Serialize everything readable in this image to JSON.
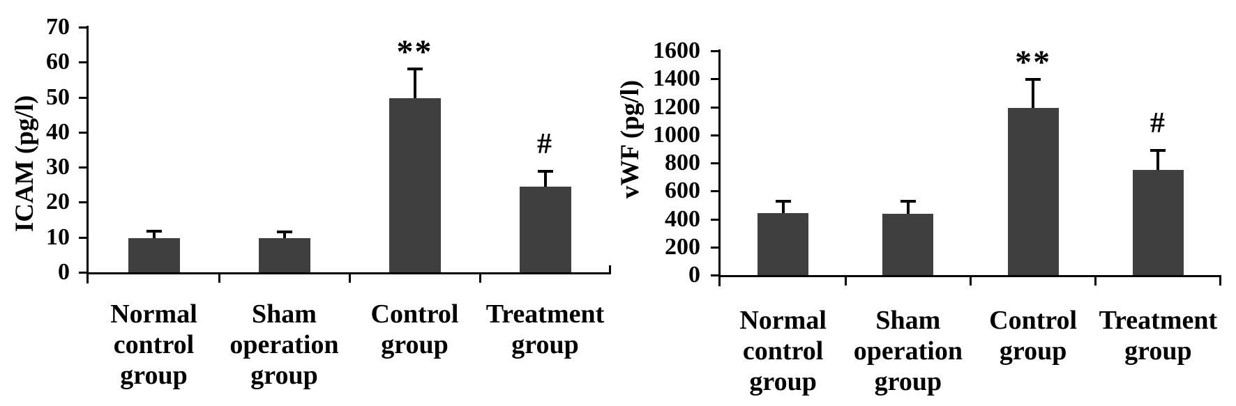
{
  "figure": {
    "background": "#ffffff",
    "text_color": "#000000"
  },
  "chart_data": [
    {
      "id": "icam",
      "type": "bar",
      "title": "",
      "ylabel": "ICAM (pg/l)",
      "xlabel": "",
      "categories": [
        "Normal control group",
        "Sham operation group",
        "Control group",
        "Treatment group"
      ],
      "values": [
        9.8,
        9.8,
        49.8,
        24.4
      ],
      "errors_up": [
        1.9,
        1.7,
        8.2,
        4.4
      ],
      "annotations": [
        "",
        "",
        "**",
        "#"
      ],
      "ylim": [
        0,
        70
      ],
      "ytick_step": 10,
      "ytick_labels": [
        "0",
        "10",
        "20",
        "30",
        "40",
        "50",
        "60",
        "70"
      ],
      "bar_color": "#3f3f3f",
      "axis_color": "#000000",
      "grid": false,
      "legend": "none"
    },
    {
      "id": "vwf",
      "type": "bar",
      "title": "",
      "ylabel": "vWF (pg/l)",
      "xlabel": "",
      "categories": [
        "Normal control group",
        "Sham operation group",
        "Control group",
        "Treatment group"
      ],
      "values": [
        440,
        437,
        1195,
        750
      ],
      "errors_up": [
        85,
        90,
        200,
        140
      ],
      "annotations": [
        "",
        "",
        "**",
        "#"
      ],
      "ylim": [
        0,
        1600
      ],
      "ytick_step": 200,
      "ytick_labels": [
        "0",
        "200",
        "400",
        "600",
        "800",
        "1000",
        "1200",
        "1400",
        "1600"
      ],
      "bar_color": "#3f3f3f",
      "axis_color": "#000000",
      "grid": false,
      "legend": "none"
    }
  ]
}
